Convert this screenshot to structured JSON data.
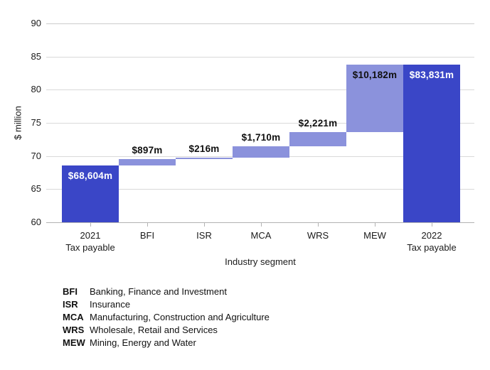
{
  "chart_data": {
    "type": "bar",
    "subtype": "waterfall",
    "title": "",
    "xlabel": "Industry segment",
    "ylabel": "$ million",
    "ylim": [
      60,
      90
    ],
    "ytick_step": 5,
    "yticks": [
      60,
      65,
      70,
      75,
      80,
      85,
      90
    ],
    "grid": true,
    "colors": {
      "total_bar": "#3a46c7",
      "delta_bar": "#8b92dc",
      "inside_label_light": "#ffffff",
      "inside_label_dark": "#101010",
      "gridline": "#d9d9d9",
      "axis_line": "#b3b3b3"
    },
    "bars": [
      {
        "name": "2021-tax-payable",
        "category_lines": [
          "2021",
          "Tax payable"
        ],
        "label": "$68,604m",
        "value_millions": 68604,
        "kind": "total",
        "axis_start": 60,
        "axis_end": 68.604,
        "label_placement": "inside-light"
      },
      {
        "name": "bfi",
        "category_lines": [
          "BFI"
        ],
        "label": "$897m",
        "value_millions": 897,
        "kind": "delta",
        "axis_start": 68.604,
        "axis_end": 69.501,
        "label_placement": "above"
      },
      {
        "name": "isr",
        "category_lines": [
          "ISR"
        ],
        "label": "$216m",
        "value_millions": 216,
        "kind": "delta",
        "axis_start": 69.501,
        "axis_end": 69.717,
        "label_placement": "above"
      },
      {
        "name": "mca",
        "category_lines": [
          "MCA"
        ],
        "label": "$1,710m",
        "value_millions": 1710,
        "kind": "delta",
        "axis_start": 69.717,
        "axis_end": 71.427,
        "label_placement": "above"
      },
      {
        "name": "wrs",
        "category_lines": [
          "WRS"
        ],
        "label": "$2,221m",
        "value_millions": 2221,
        "kind": "delta",
        "axis_start": 71.427,
        "axis_end": 73.648,
        "label_placement": "above"
      },
      {
        "name": "mew",
        "category_lines": [
          "MEW"
        ],
        "label": "$10,182m",
        "value_millions": 10182,
        "kind": "delta",
        "axis_start": 73.648,
        "axis_end": 83.83,
        "label_placement": "inside-dark"
      },
      {
        "name": "2022-tax-payable",
        "category_lines": [
          "2022",
          "Tax payable"
        ],
        "label": "$83,831m",
        "value_millions": 83831,
        "kind": "total",
        "axis_start": 60,
        "axis_end": 83.831,
        "label_placement": "inside-light"
      }
    ],
    "legend_position": "bottom-left",
    "legend": [
      {
        "abbr": "BFI",
        "label": "Banking, Finance and Investment"
      },
      {
        "abbr": "ISR",
        "label": "Insurance"
      },
      {
        "abbr": "MCA",
        "label": "Manufacturing, Construction and Agriculture"
      },
      {
        "abbr": "WRS",
        "label": "Wholesale, Retail and Services"
      },
      {
        "abbr": "MEW",
        "label": "Mining, Energy and Water"
      }
    ]
  }
}
